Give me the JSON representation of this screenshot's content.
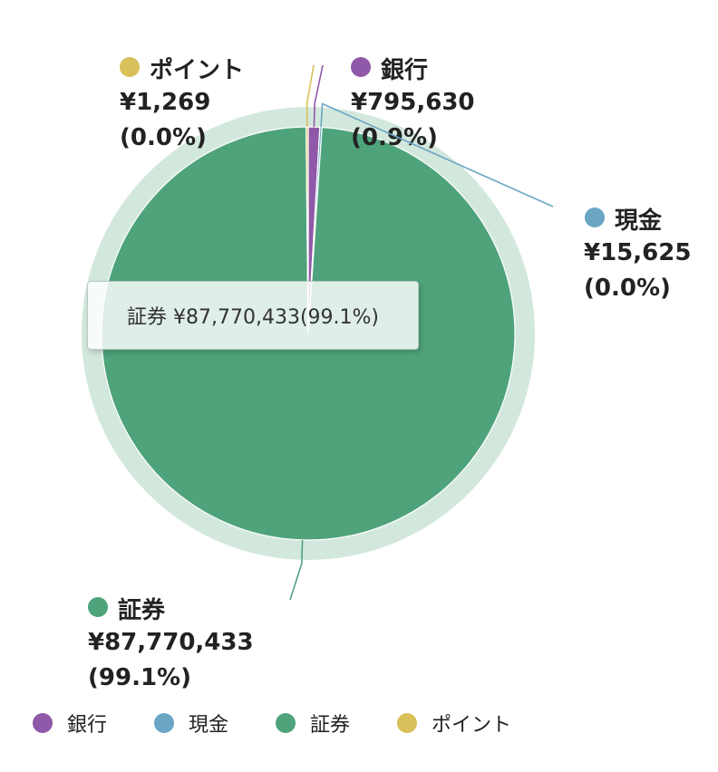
{
  "chart_data": {
    "type": "pie",
    "currency": "¥",
    "slices": [
      {
        "key": "bank",
        "label": "銀行",
        "value": 795630,
        "value_text": "¥795,630",
        "percent": 0.9,
        "percent_text": "(0.9%)",
        "color": "#8f58a8"
      },
      {
        "key": "cash",
        "label": "現金",
        "value": 15625,
        "value_text": "¥15,625",
        "percent": 0.0,
        "percent_text": "(0.0%)",
        "color": "#6aa6c4"
      },
      {
        "key": "sec",
        "label": "証券",
        "value": 87770433,
        "value_text": "¥87,770,433",
        "percent": 99.1,
        "percent_text": "(99.1%)",
        "color": "#4ea37b"
      },
      {
        "key": "points",
        "label": "ポイント",
        "value": 1269,
        "value_text": "¥1,269",
        "percent": 0.0,
        "percent_text": "(0.0%)",
        "color": "#d8c05a"
      }
    ],
    "legend": [
      "銀行",
      "現金",
      "証券",
      "ポイント"
    ],
    "legend_position": "bottom-left",
    "highlight_ring_color": "#d3e8dd"
  },
  "tooltip": {
    "text": "証券 ¥87,770,433(99.1%)"
  }
}
